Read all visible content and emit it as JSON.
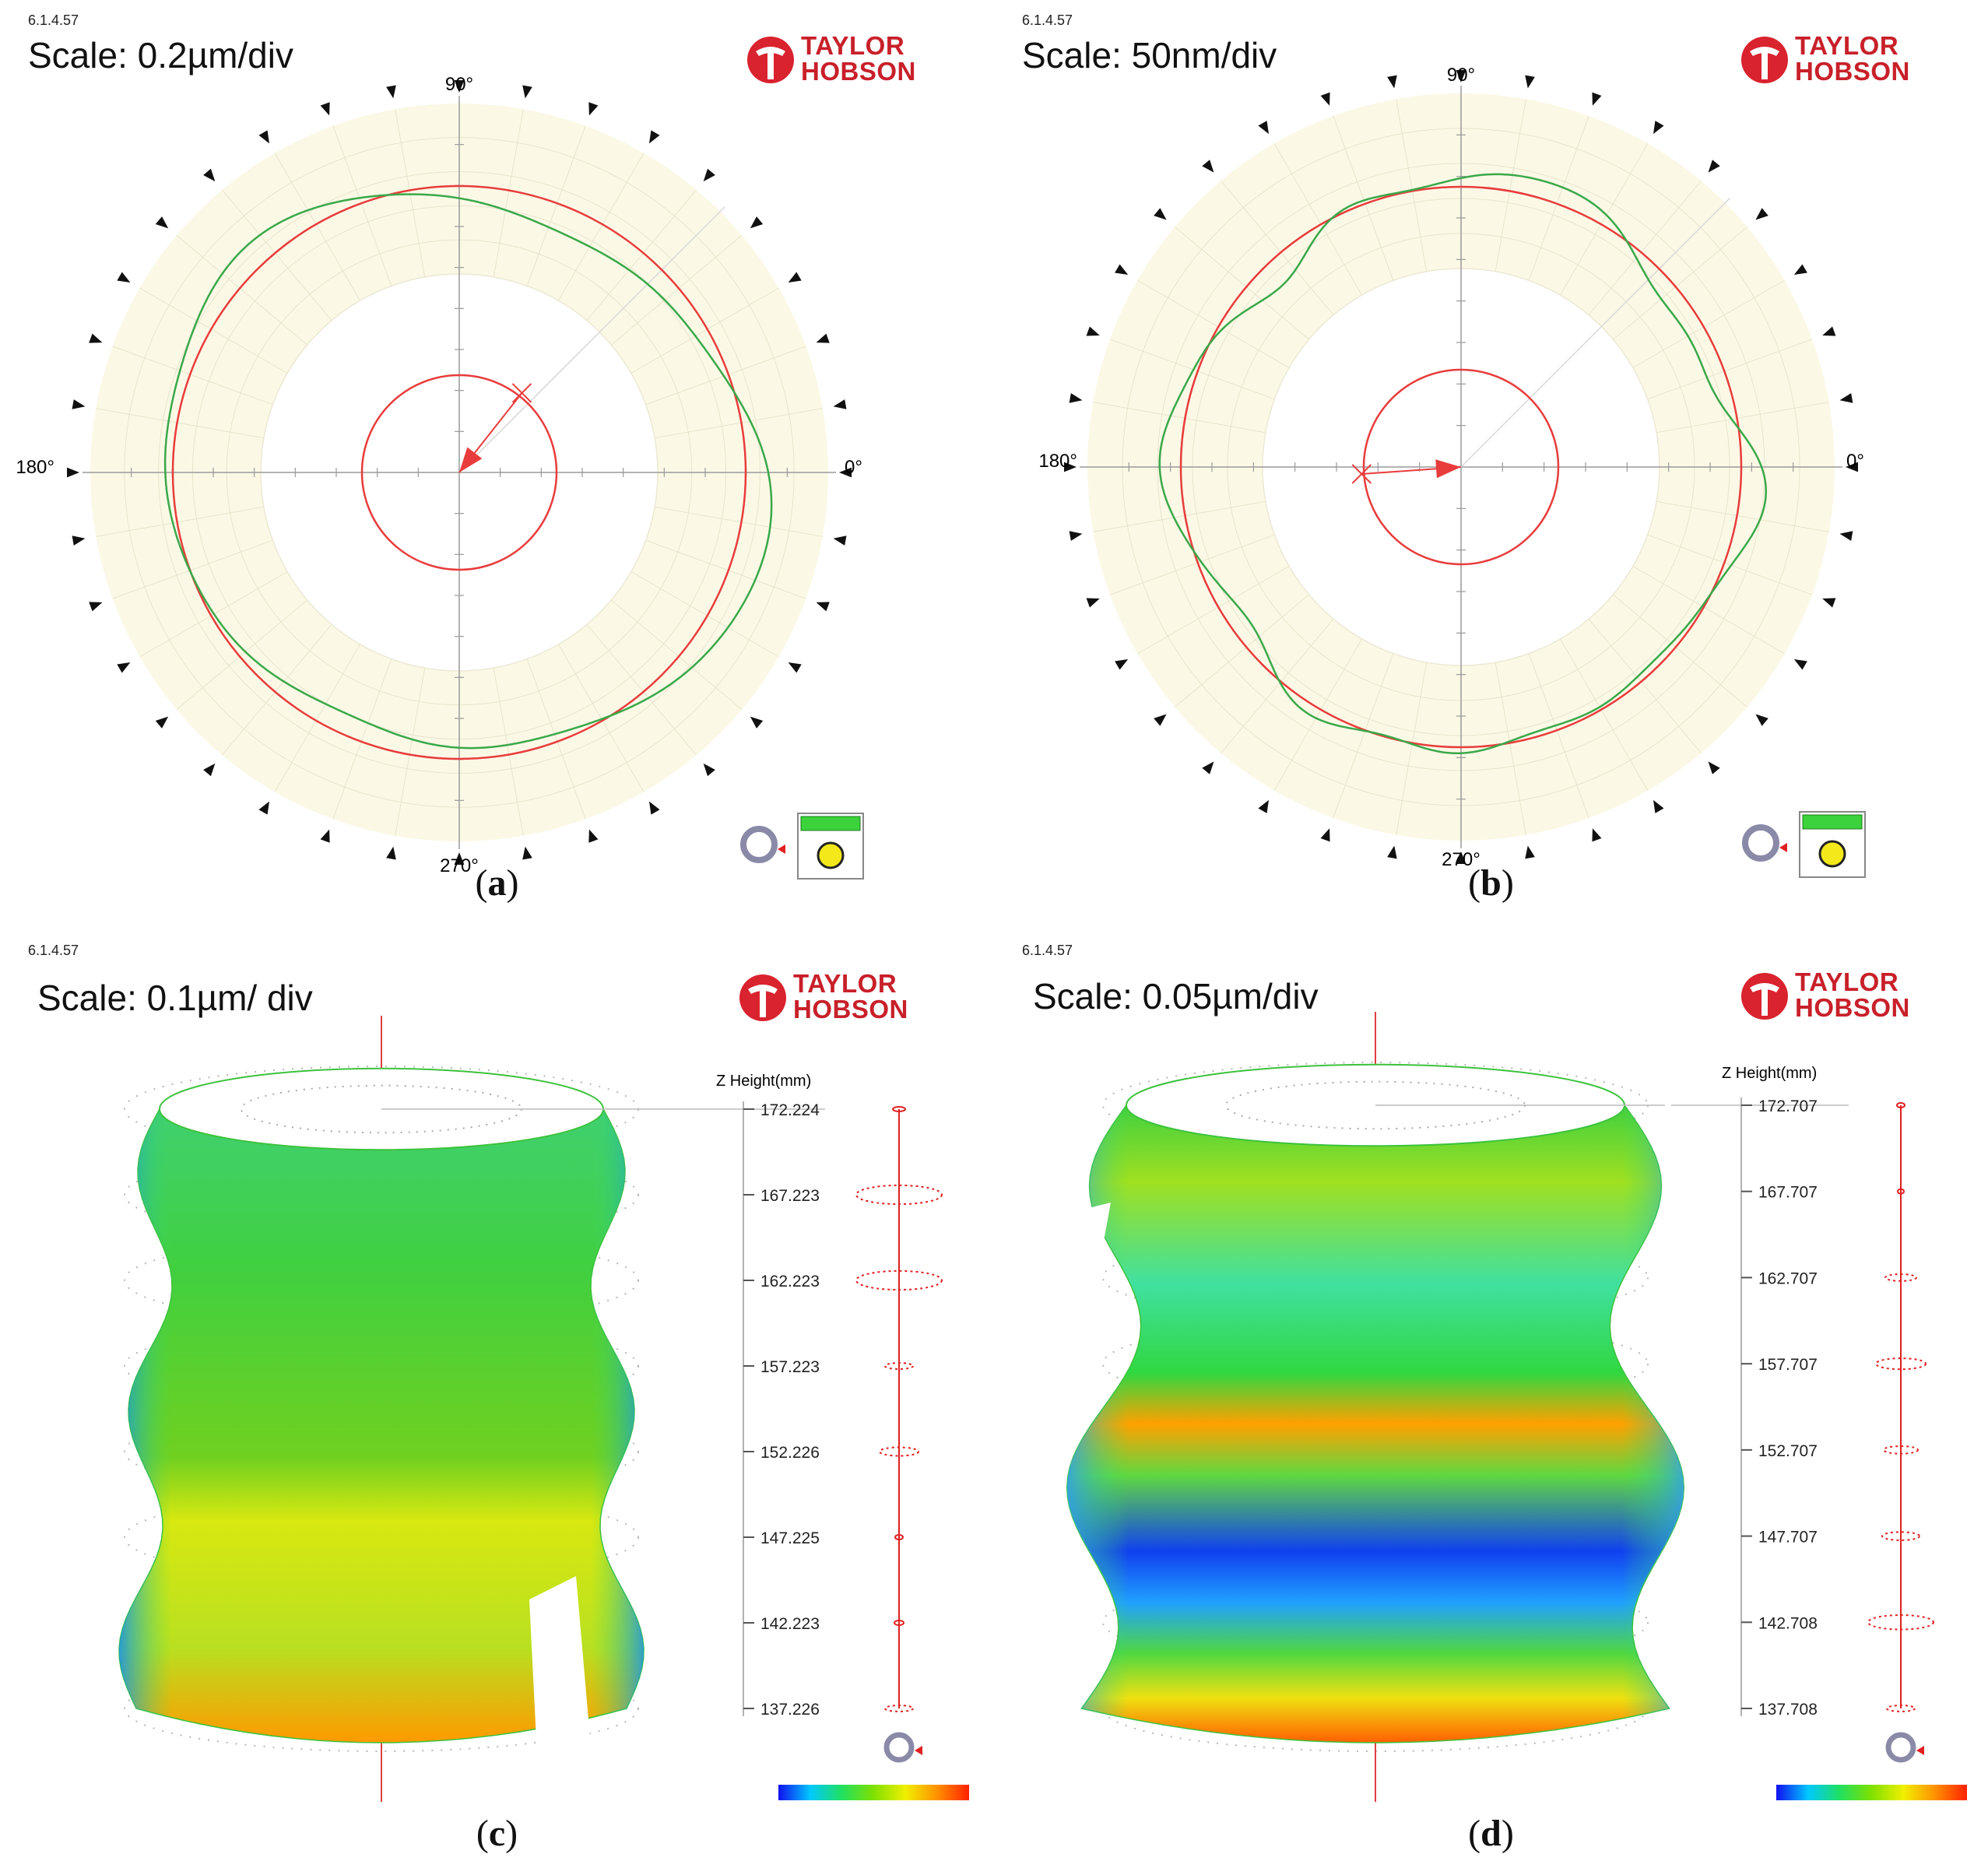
{
  "common": {
    "version": "6.1.4.57",
    "brand_line1": "TAYLOR",
    "brand_line2": "HOBSON"
  },
  "panels": {
    "a": {
      "scale": "Scale: 0.2µm/div",
      "caption": "a"
    },
    "b": {
      "scale": "Scale: 50nm/div",
      "caption": "b"
    },
    "c": {
      "scale": "Scale: 0.1µm/ div",
      "caption": "c"
    },
    "d": {
      "scale": "Scale: 0.05µm/div",
      "caption": "d"
    }
  },
  "chart_data": [
    {
      "type": "polar",
      "panel": "a",
      "title": "Scale: 0.2µm/div",
      "angle_labels": [
        "90°",
        "180°",
        "0°",
        "270°"
      ],
      "scale_per_division": "0.2µm",
      "reference_circle": true,
      "profile_color": "#3aa84a",
      "reference_color": "#e83c3c",
      "profile_harmonics": [
        [
          2,
          0.075,
          0.9
        ],
        [
          3,
          0.025,
          0.4
        ],
        [
          5,
          0.012,
          1.3
        ],
        [
          8,
          0.006,
          0.2
        ]
      ]
    },
    {
      "type": "polar",
      "panel": "b",
      "title": "Scale: 50nm/div",
      "angle_labels": [
        "90°",
        "180°",
        "0°",
        "270°"
      ],
      "scale_per_division": "50nm",
      "reference_circle": true,
      "profile_color": "#3aa84a",
      "reference_color": "#e83c3c",
      "profile_harmonics": [
        [
          4,
          0.05,
          0.6
        ],
        [
          3,
          0.02,
          2.0
        ],
        [
          6,
          0.025,
          0.3
        ],
        [
          9,
          0.015,
          1.1
        ],
        [
          12,
          0.01,
          0.5
        ]
      ]
    },
    {
      "type": "surface3d",
      "panel": "c",
      "title": "Scale: 0.1µm/ div",
      "z_axis_title": "Z Height(mm)",
      "z_heights": [
        "172.224",
        "167.223",
        "162.223",
        "157.223",
        "152.226",
        "147.225",
        "142.223",
        "137.226"
      ],
      "colormap": [
        "#1010f0",
        "#00c8ff",
        "#20e060",
        "#80e000",
        "#f0f000",
        "#ff9000",
        "#ff2000"
      ]
    },
    {
      "type": "surface3d",
      "panel": "d",
      "title": "Scale: 0.05µm/div",
      "z_axis_title": "Z Height(mm)",
      "z_heights": [
        "172.707",
        "167.707",
        "162.707",
        "157.707",
        "152.707",
        "147.707",
        "142.708",
        "137.708"
      ],
      "colormap": [
        "#1010f0",
        "#00c8ff",
        "#20e060",
        "#80e000",
        "#f0f000",
        "#ff9000",
        "#ff2000"
      ]
    }
  ]
}
